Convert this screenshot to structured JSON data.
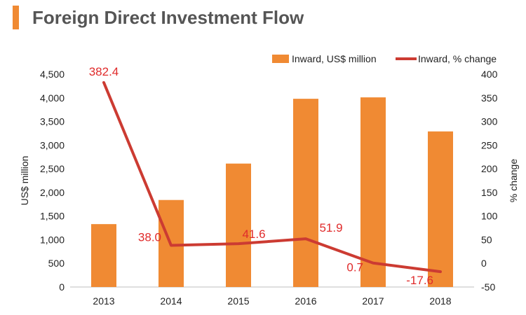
{
  "header": {
    "title": "Foreign Direct Investment Flow"
  },
  "chart_data": {
    "type": "bar",
    "categories": [
      "2013",
      "2014",
      "2015",
      "2016",
      "2017",
      "2018"
    ],
    "series": [
      {
        "name": "Inward, US$ million",
        "type": "bar",
        "axis": "left",
        "values": [
          1330,
          1840,
          2610,
          3980,
          4010,
          3290
        ],
        "color": "#f08a33"
      },
      {
        "name": "Inward, % change",
        "type": "line",
        "axis": "right",
        "values": [
          382.4,
          38.0,
          41.6,
          51.9,
          0.7,
          -17.6
        ],
        "labels": [
          "382.4",
          "38.0",
          "41.6",
          "51.9",
          "0.7",
          "-17.6"
        ],
        "color": "#cc3b32"
      }
    ],
    "ylabel": "US$ million",
    "y2label": "% change",
    "ylim": [
      0,
      4500
    ],
    "y2lim": [
      -50,
      400
    ],
    "yticks": [
      "0",
      "500",
      "1,000",
      "1,500",
      "2,000",
      "2,500",
      "3,000",
      "3,500",
      "4,000",
      "4,500"
    ],
    "y2ticks": [
      "-50",
      "0",
      "50",
      "100",
      "150",
      "200",
      "250",
      "300",
      "350",
      "400"
    ],
    "legend": "top-right",
    "grid": false,
    "label_color": "#e02b2b"
  }
}
